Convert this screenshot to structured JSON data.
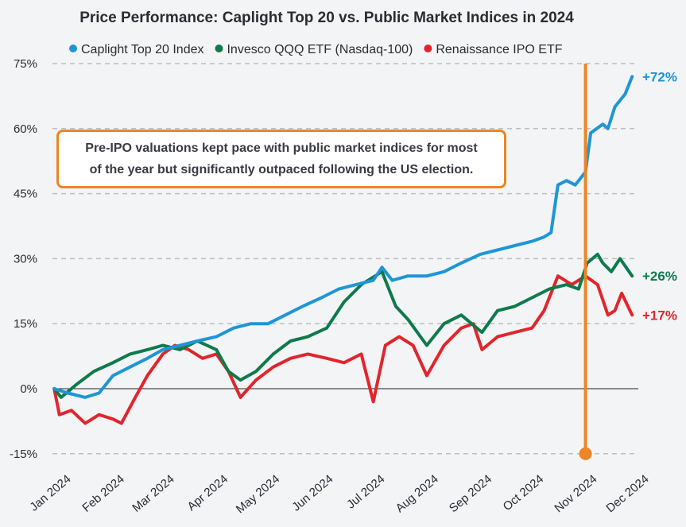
{
  "chart_data": {
    "type": "line",
    "title": "Price Performance: Caplight Top 20 vs. Public Market Indices in 2024",
    "xlim": [
      "2024-01-01",
      "2024-12-01"
    ],
    "ylim": [
      -15,
      75
    ],
    "yticks": [
      -15,
      0,
      15,
      30,
      45,
      60,
      75
    ],
    "ytick_labels": [
      "-15%",
      "0%",
      "15%",
      "30%",
      "45%",
      "60%",
      "75%"
    ],
    "xtick_dates": [
      "2024-01-01",
      "2024-02-01",
      "2024-03-01",
      "2024-04-01",
      "2024-05-01",
      "2024-06-01",
      "2024-07-01",
      "2024-08-01",
      "2024-09-01",
      "2024-10-01",
      "2024-11-01",
      "2024-12-01"
    ],
    "xtick_labels": [
      "Jan 2024",
      "Feb 2024",
      "Mar 2024",
      "Apr 2024",
      "May 2024",
      "Jun 2024",
      "Jul 2024",
      "Aug 2024",
      "Sep 2024",
      "Oct 2024",
      "Nov 2024",
      "Dec 2024"
    ],
    "grid": "horizontal dashed",
    "legend_position": "top",
    "series": [
      {
        "name": "Caplight Top 20 Index",
        "color": "#1e96d6",
        "end_label": "+72%",
        "x": [
          "2024-01-02",
          "2024-01-10",
          "2024-01-20",
          "2024-01-28",
          "2024-02-05",
          "2024-02-15",
          "2024-02-25",
          "2024-03-05",
          "2024-03-15",
          "2024-03-25",
          "2024-04-05",
          "2024-04-15",
          "2024-04-25",
          "2024-05-05",
          "2024-05-15",
          "2024-05-25",
          "2024-06-05",
          "2024-06-15",
          "2024-06-25",
          "2024-07-05",
          "2024-07-10",
          "2024-07-16",
          "2024-07-25",
          "2024-08-05",
          "2024-08-15",
          "2024-08-25",
          "2024-09-05",
          "2024-09-15",
          "2024-09-25",
          "2024-10-05",
          "2024-10-12",
          "2024-10-16",
          "2024-10-20",
          "2024-10-25",
          "2024-10-30",
          "2024-11-05",
          "2024-11-08",
          "2024-11-15",
          "2024-11-18",
          "2024-11-22",
          "2024-11-28",
          "2024-12-02"
        ],
        "y": [
          0,
          -1,
          -2,
          -1,
          3,
          5,
          7,
          9,
          10,
          11,
          12,
          14,
          15,
          15,
          17,
          19,
          21,
          23,
          24,
          25,
          28,
          25,
          26,
          26,
          27,
          29,
          31,
          32,
          33,
          34,
          35,
          36,
          47,
          48,
          47,
          50,
          59,
          61,
          60,
          65,
          68,
          72
        ]
      },
      {
        "name": "Invesco QQQ ETF (Nasdaq-100)",
        "color": "#0f7a4b",
        "end_label": "+26%",
        "x": [
          "2024-01-02",
          "2024-01-06",
          "2024-01-15",
          "2024-01-25",
          "2024-02-05",
          "2024-02-15",
          "2024-02-25",
          "2024-03-05",
          "2024-03-15",
          "2024-03-25",
          "2024-04-05",
          "2024-04-12",
          "2024-04-19",
          "2024-04-28",
          "2024-05-08",
          "2024-05-18",
          "2024-05-28",
          "2024-06-08",
          "2024-06-18",
          "2024-06-28",
          "2024-07-10",
          "2024-07-18",
          "2024-07-25",
          "2024-08-05",
          "2024-08-15",
          "2024-08-25",
          "2024-09-06",
          "2024-09-15",
          "2024-09-25",
          "2024-10-05",
          "2024-10-15",
          "2024-10-25",
          "2024-11-01",
          "2024-11-06",
          "2024-11-12",
          "2024-11-15",
          "2024-11-20",
          "2024-11-25",
          "2024-12-02"
        ],
        "y": [
          0,
          -2,
          1,
          4,
          6,
          8,
          9,
          10,
          9,
          11,
          9,
          4,
          2,
          4,
          8,
          11,
          12,
          14,
          20,
          24,
          27,
          19,
          16,
          10,
          15,
          17,
          13,
          18,
          19,
          21,
          23,
          24,
          23,
          29,
          31,
          29,
          27,
          30,
          26
        ]
      },
      {
        "name": "Renaissance IPO ETF",
        "color": "#e0262c",
        "end_label": "+17%",
        "x": [
          "2024-01-02",
          "2024-01-05",
          "2024-01-12",
          "2024-01-20",
          "2024-01-28",
          "2024-02-05",
          "2024-02-10",
          "2024-02-18",
          "2024-02-25",
          "2024-03-05",
          "2024-03-12",
          "2024-03-20",
          "2024-03-28",
          "2024-04-05",
          "2024-04-12",
          "2024-04-19",
          "2024-04-28",
          "2024-05-08",
          "2024-05-18",
          "2024-05-28",
          "2024-06-08",
          "2024-06-18",
          "2024-06-28",
          "2024-07-05",
          "2024-07-12",
          "2024-07-20",
          "2024-07-28",
          "2024-08-05",
          "2024-08-15",
          "2024-08-25",
          "2024-09-01",
          "2024-09-06",
          "2024-09-15",
          "2024-09-25",
          "2024-10-05",
          "2024-10-12",
          "2024-10-20",
          "2024-10-28",
          "2024-11-05",
          "2024-11-12",
          "2024-11-18",
          "2024-11-22",
          "2024-11-26",
          "2024-12-02"
        ],
        "y": [
          0,
          -6,
          -5,
          -8,
          -6,
          -7,
          -8,
          -2,
          3,
          8,
          10,
          9,
          7,
          8,
          4,
          -2,
          2,
          5,
          7,
          8,
          7,
          6,
          8,
          -3,
          10,
          12,
          10,
          3,
          10,
          14,
          15,
          9,
          12,
          13,
          14,
          18,
          26,
          24,
          26,
          24,
          17,
          18,
          22,
          17
        ]
      }
    ],
    "annotations": {
      "callout_lines": [
        "Pre-IPO valuations kept pace with public market indices for most",
        "of the year but significantly outpaced following the US election."
      ],
      "election_marker_date": "2024-11-05",
      "election_marker_color": "#ec8525"
    }
  }
}
